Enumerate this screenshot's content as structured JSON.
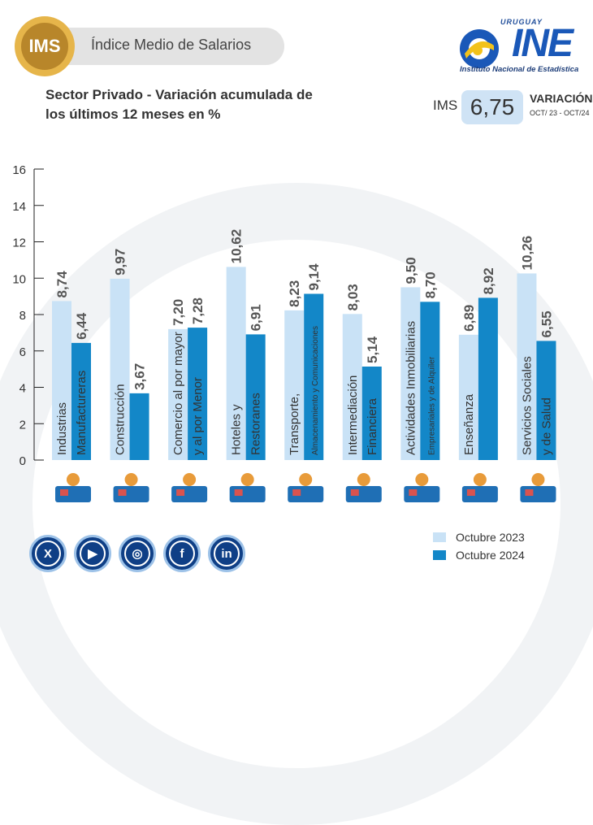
{
  "header": {
    "badge": "IMS",
    "title": "Índice Medio de Salarios",
    "subtitle": "Sector Privado - Variación acumulada de los últimos 12 meses en %"
  },
  "logo": {
    "country": "URUGUAY",
    "name": "INE",
    "full_name": "Instituto Nacional de Estadística"
  },
  "kpi": {
    "label": "IMS",
    "value": "6,75",
    "caption": "VARIACIÓN",
    "period": "OCT/ 23 - OCT/24"
  },
  "colors": {
    "series_2023": "#c9e2f6",
    "series_2024": "#1387c8"
  },
  "chart_data": {
    "type": "bar",
    "title": "",
    "xlabel": "",
    "ylabel": "",
    "ylim": [
      0,
      16
    ],
    "yticks": [
      0,
      2,
      4,
      6,
      8,
      10,
      12,
      14,
      16
    ],
    "categories": [
      [
        "Industrias",
        "Manufactureras"
      ],
      [
        "Construcción",
        ""
      ],
      [
        "Comercio al por mayor",
        "y al por Menor"
      ],
      [
        "Hoteles y",
        "Restoranes"
      ],
      [
        "Transporte,",
        "Almacenamiento y Comunicaciones"
      ],
      [
        "Intermediación",
        "Financiera"
      ],
      [
        "Actividades Inmobiliarias",
        "Empresariales y de Alquiler"
      ],
      [
        "Enseñanza",
        ""
      ],
      [
        "Servicios Sociales",
        "y de Salud"
      ]
    ],
    "category_icons": [
      "factory-icon",
      "construction-worker-icon",
      "store-icon",
      "restaurant-icon",
      "bus-icon",
      "finance-icon",
      "real-estate-key-icon",
      "teacher-icon",
      "hospital-icon"
    ],
    "series": [
      {
        "name": "Octubre 2023",
        "values": [
          8.74,
          9.97,
          7.2,
          10.62,
          8.23,
          8.03,
          9.5,
          6.89,
          10.26
        ],
        "labels": [
          "8,74",
          "9,97",
          "7,20",
          "10,62",
          "8,23",
          "8,03",
          "9,50",
          "6,89",
          "10,26"
        ]
      },
      {
        "name": "Octubre 2024",
        "values": [
          6.44,
          3.67,
          7.28,
          6.91,
          9.14,
          5.14,
          8.7,
          8.92,
          6.55
        ],
        "labels": [
          "6,44",
          "3,67",
          "7,28",
          "6,91",
          "9,14",
          "5,14",
          "8,70",
          "8,92",
          "6,55"
        ]
      }
    ],
    "legend": "bottom-right"
  },
  "social": [
    {
      "name": "x-icon",
      "glyph": "X"
    },
    {
      "name": "youtube-icon",
      "glyph": "▶"
    },
    {
      "name": "instagram-icon",
      "glyph": "◎"
    },
    {
      "name": "facebook-icon",
      "glyph": "f"
    },
    {
      "name": "linkedin-icon",
      "glyph": "in"
    }
  ]
}
